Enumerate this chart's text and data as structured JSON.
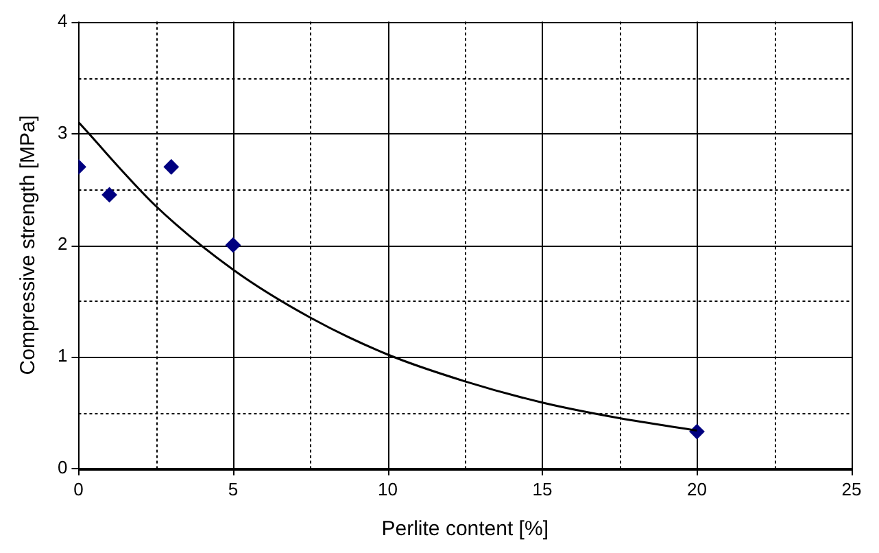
{
  "chart_data": {
    "type": "scatter",
    "xlabel": "Perlite content [%]",
    "ylabel": "Compressive strength [MPa]",
    "xlim": [
      0,
      25
    ],
    "xticks": [
      0,
      {
        "value": 2.5,
        "label": null
      },
      5,
      {
        "value": 7.5,
        "label": null
      },
      10,
      {
        "value": 12.5,
        "label": null
      },
      15,
      {
        "value": 17.5,
        "label": null
      },
      20,
      {
        "value": 22.5,
        "label": null
      },
      25
    ],
    "ylim": [
      0,
      4
    ],
    "yticks": [
      0,
      {
        "value": 0.5,
        "label": null
      },
      1,
      {
        "value": 1.5,
        "label": null
      },
      2,
      {
        "value": 2.5,
        "label": null
      },
      3,
      {
        "value": 3.5,
        "label": null
      },
      4
    ],
    "grid": true,
    "legend": false,
    "series": [
      {
        "type": "scatter",
        "color": "#000080",
        "marker": "diamond",
        "x": [
          0,
          1,
          3,
          5,
          20
        ],
        "values": [
          2.7,
          2.45,
          2.7,
          2.0,
          0.33
        ]
      },
      {
        "type": "line",
        "color": "#000000",
        "marker": "none",
        "line_style": "solid",
        "x": [
          0,
          2.5,
          5,
          7.5,
          10,
          12.5,
          15,
          17.5,
          20
        ],
        "values": [
          3.1,
          2.35,
          1.78,
          1.35,
          1.02,
          0.78,
          0.59,
          0.45,
          0.34
        ]
      }
    ]
  }
}
